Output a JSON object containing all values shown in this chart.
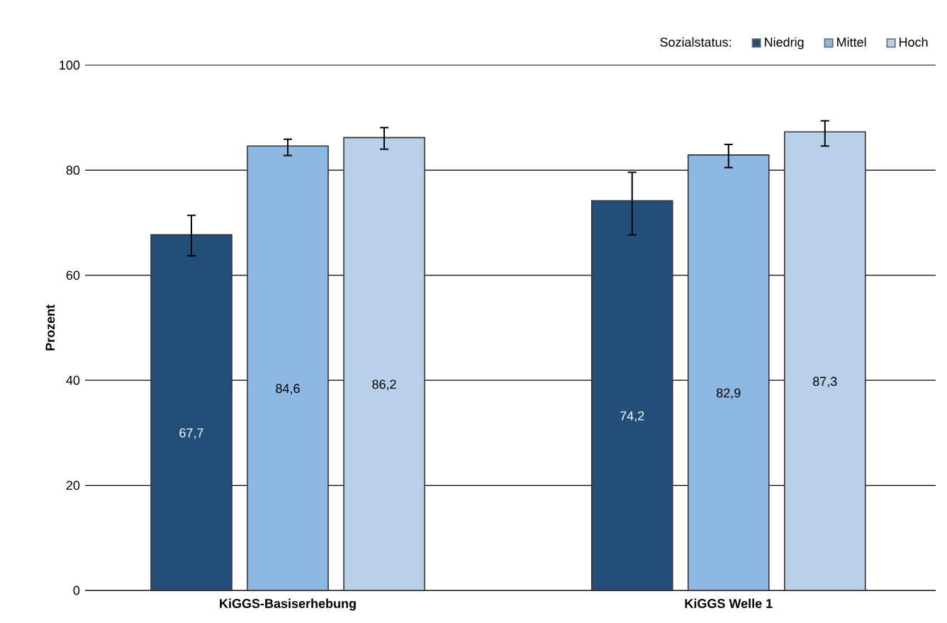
{
  "chart_data": {
    "type": "bar",
    "ylabel": "Prozent",
    "legend_title": "Sozialstatus:",
    "categories": [
      "KiGGS-Basiserhebung",
      "KiGGS Welle 1"
    ],
    "series": [
      {
        "name": "Niedrig",
        "color": "#234e78",
        "values": [
          67.7,
          74.2
        ],
        "value_labels": [
          "67,7",
          "74,2"
        ],
        "errors": [
          [
            63.7,
            71.4
          ],
          [
            67.7,
            79.6
          ]
        ]
      },
      {
        "name": "Mittel",
        "color": "#8db8e2",
        "values": [
          84.6,
          82.9
        ],
        "value_labels": [
          "84,6",
          "82,9"
        ],
        "errors": [
          [
            82.8,
            85.9
          ],
          [
            80.5,
            84.9
          ]
        ]
      },
      {
        "name": "Hoch",
        "color": "#b8cfe8",
        "values": [
          86.2,
          87.3
        ],
        "value_labels": [
          "86,2",
          "87,3"
        ],
        "errors": [
          [
            84.0,
            88.1
          ],
          [
            84.6,
            89.4
          ]
        ]
      }
    ],
    "ylim": [
      0,
      100
    ],
    "yticks": [
      0,
      20,
      40,
      60,
      80,
      100
    ],
    "grid": "y",
    "legend": "top right"
  }
}
